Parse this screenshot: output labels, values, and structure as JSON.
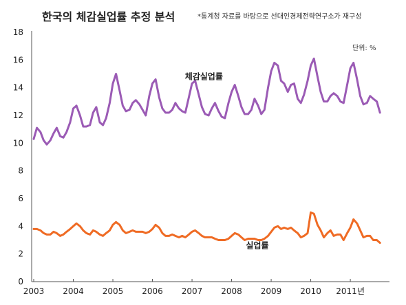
{
  "chart_data": {
    "type": "line",
    "title": "한국의 체감실업률 추정 분석",
    "source": "*통계청 자료를 바탕으로 선대인경제전략연구소가 재구성",
    "unit": "단위: %",
    "ylim": [
      0,
      18
    ],
    "yticks": [
      "0",
      "2",
      "4",
      "6",
      "8",
      "10",
      "12",
      "14",
      "16",
      "18"
    ],
    "xlim": [
      2003.0,
      2011.92
    ],
    "xticks": [
      {
        "label": "2003",
        "at": 2003
      },
      {
        "label": "2004",
        "at": 2004
      },
      {
        "label": "2005",
        "at": 2005
      },
      {
        "label": "2006",
        "at": 2006
      },
      {
        "label": "2007",
        "at": 2007
      },
      {
        "label": "2008",
        "at": 2008
      },
      {
        "label": "2009",
        "at": 2009
      },
      {
        "label": "2010",
        "at": 2010
      },
      {
        "label": "2011년",
        "at": 2011
      }
    ],
    "grid": false,
    "legend": "inline labels",
    "colors": {
      "perceived": "#9b5bb5",
      "unemployment": "#ef6b24"
    },
    "series": [
      {
        "name": "체감실업률",
        "key": "perceived",
        "points": [
          [
            2003.0,
            10.3
          ],
          [
            2003.08,
            11.1
          ],
          [
            2003.17,
            10.8
          ],
          [
            2003.25,
            10.2
          ],
          [
            2003.33,
            9.9
          ],
          [
            2003.42,
            10.2
          ],
          [
            2003.5,
            10.7
          ],
          [
            2003.58,
            11.1
          ],
          [
            2003.67,
            10.5
          ],
          [
            2003.75,
            10.4
          ],
          [
            2003.83,
            10.8
          ],
          [
            2003.92,
            11.5
          ],
          [
            2004.0,
            12.5
          ],
          [
            2004.08,
            12.7
          ],
          [
            2004.17,
            12.0
          ],
          [
            2004.25,
            11.2
          ],
          [
            2004.33,
            11.2
          ],
          [
            2004.42,
            11.3
          ],
          [
            2004.5,
            12.2
          ],
          [
            2004.58,
            12.6
          ],
          [
            2004.67,
            11.5
          ],
          [
            2004.75,
            11.3
          ],
          [
            2004.83,
            11.8
          ],
          [
            2004.92,
            12.9
          ],
          [
            2005.0,
            14.3
          ],
          [
            2005.08,
            15.0
          ],
          [
            2005.17,
            13.8
          ],
          [
            2005.25,
            12.7
          ],
          [
            2005.33,
            12.3
          ],
          [
            2005.42,
            12.4
          ],
          [
            2005.5,
            12.9
          ],
          [
            2005.58,
            13.1
          ],
          [
            2005.67,
            12.8
          ],
          [
            2005.75,
            12.4
          ],
          [
            2005.83,
            12.0
          ],
          [
            2005.92,
            13.4
          ],
          [
            2006.0,
            14.3
          ],
          [
            2006.08,
            14.6
          ],
          [
            2006.17,
            13.3
          ],
          [
            2006.25,
            12.5
          ],
          [
            2006.33,
            12.2
          ],
          [
            2006.42,
            12.2
          ],
          [
            2006.5,
            12.4
          ],
          [
            2006.58,
            12.9
          ],
          [
            2006.67,
            12.5
          ],
          [
            2006.75,
            12.3
          ],
          [
            2006.83,
            12.2
          ],
          [
            2006.92,
            13.3
          ],
          [
            2007.0,
            14.3
          ],
          [
            2007.08,
            14.5
          ],
          [
            2007.17,
            13.5
          ],
          [
            2007.25,
            12.6
          ],
          [
            2007.33,
            12.1
          ],
          [
            2007.42,
            12.0
          ],
          [
            2007.5,
            12.5
          ],
          [
            2007.58,
            12.9
          ],
          [
            2007.67,
            12.3
          ],
          [
            2007.75,
            11.9
          ],
          [
            2007.83,
            11.8
          ],
          [
            2007.92,
            12.9
          ],
          [
            2008.0,
            13.7
          ],
          [
            2008.08,
            14.2
          ],
          [
            2008.17,
            13.4
          ],
          [
            2008.25,
            12.6
          ],
          [
            2008.33,
            12.1
          ],
          [
            2008.42,
            12.1
          ],
          [
            2008.5,
            12.4
          ],
          [
            2008.58,
            13.2
          ],
          [
            2008.67,
            12.7
          ],
          [
            2008.75,
            12.1
          ],
          [
            2008.83,
            12.4
          ],
          [
            2008.92,
            14.0
          ],
          [
            2009.0,
            15.2
          ],
          [
            2009.08,
            15.8
          ],
          [
            2009.17,
            15.6
          ],
          [
            2009.25,
            14.5
          ],
          [
            2009.33,
            14.3
          ],
          [
            2009.42,
            13.7
          ],
          [
            2009.5,
            14.2
          ],
          [
            2009.58,
            14.3
          ],
          [
            2009.67,
            13.2
          ],
          [
            2009.75,
            12.9
          ],
          [
            2009.83,
            13.5
          ],
          [
            2009.92,
            14.5
          ],
          [
            2010.0,
            15.6
          ],
          [
            2010.08,
            16.1
          ],
          [
            2010.17,
            14.8
          ],
          [
            2010.25,
            13.7
          ],
          [
            2010.33,
            13.0
          ],
          [
            2010.42,
            13.0
          ],
          [
            2010.5,
            13.4
          ],
          [
            2010.58,
            13.6
          ],
          [
            2010.67,
            13.4
          ],
          [
            2010.75,
            13.0
          ],
          [
            2010.83,
            12.9
          ],
          [
            2010.92,
            14.2
          ],
          [
            2011.0,
            15.4
          ],
          [
            2011.08,
            15.8
          ],
          [
            2011.17,
            14.6
          ],
          [
            2011.25,
            13.4
          ],
          [
            2011.33,
            12.8
          ],
          [
            2011.42,
            12.9
          ],
          [
            2011.5,
            13.4
          ],
          [
            2011.58,
            13.2
          ],
          [
            2011.67,
            13.0
          ],
          [
            2011.75,
            12.2
          ]
        ]
      },
      {
        "name": "실업률",
        "key": "unemployment",
        "points": [
          [
            2003.0,
            3.8
          ],
          [
            2003.08,
            3.8
          ],
          [
            2003.17,
            3.7
          ],
          [
            2003.25,
            3.5
          ],
          [
            2003.33,
            3.4
          ],
          [
            2003.42,
            3.4
          ],
          [
            2003.5,
            3.6
          ],
          [
            2003.58,
            3.5
          ],
          [
            2003.67,
            3.3
          ],
          [
            2003.75,
            3.4
          ],
          [
            2003.83,
            3.6
          ],
          [
            2003.92,
            3.8
          ],
          [
            2004.0,
            4.0
          ],
          [
            2004.08,
            4.2
          ],
          [
            2004.17,
            4.0
          ],
          [
            2004.25,
            3.7
          ],
          [
            2004.33,
            3.5
          ],
          [
            2004.42,
            3.4
          ],
          [
            2004.5,
            3.7
          ],
          [
            2004.58,
            3.6
          ],
          [
            2004.67,
            3.4
          ],
          [
            2004.75,
            3.3
          ],
          [
            2004.83,
            3.5
          ],
          [
            2004.92,
            3.7
          ],
          [
            2005.0,
            4.1
          ],
          [
            2005.08,
            4.3
          ],
          [
            2005.17,
            4.1
          ],
          [
            2005.25,
            3.7
          ],
          [
            2005.33,
            3.5
          ],
          [
            2005.42,
            3.6
          ],
          [
            2005.5,
            3.7
          ],
          [
            2005.58,
            3.6
          ],
          [
            2005.67,
            3.6
          ],
          [
            2005.75,
            3.6
          ],
          [
            2005.83,
            3.5
          ],
          [
            2005.92,
            3.6
          ],
          [
            2006.0,
            3.8
          ],
          [
            2006.08,
            4.1
          ],
          [
            2006.17,
            3.9
          ],
          [
            2006.25,
            3.5
          ],
          [
            2006.33,
            3.3
          ],
          [
            2006.42,
            3.3
          ],
          [
            2006.5,
            3.4
          ],
          [
            2006.58,
            3.3
          ],
          [
            2006.67,
            3.2
          ],
          [
            2006.75,
            3.3
          ],
          [
            2006.83,
            3.2
          ],
          [
            2006.92,
            3.4
          ],
          [
            2007.0,
            3.6
          ],
          [
            2007.08,
            3.7
          ],
          [
            2007.17,
            3.5
          ],
          [
            2007.25,
            3.3
          ],
          [
            2007.33,
            3.2
          ],
          [
            2007.42,
            3.2
          ],
          [
            2007.5,
            3.2
          ],
          [
            2007.58,
            3.1
          ],
          [
            2007.67,
            3.0
          ],
          [
            2007.75,
            3.0
          ],
          [
            2007.83,
            3.0
          ],
          [
            2007.92,
            3.1
          ],
          [
            2008.0,
            3.3
          ],
          [
            2008.08,
            3.5
          ],
          [
            2008.17,
            3.4
          ],
          [
            2008.25,
            3.2
          ],
          [
            2008.33,
            3.0
          ],
          [
            2008.42,
            3.1
          ],
          [
            2008.5,
            3.1
          ],
          [
            2008.58,
            3.1
          ],
          [
            2008.67,
            3.0
          ],
          [
            2008.75,
            3.0
          ],
          [
            2008.83,
            3.1
          ],
          [
            2008.92,
            3.3
          ],
          [
            2009.0,
            3.6
          ],
          [
            2009.08,
            3.9
          ],
          [
            2009.17,
            4.0
          ],
          [
            2009.25,
            3.8
          ],
          [
            2009.33,
            3.9
          ],
          [
            2009.42,
            3.8
          ],
          [
            2009.5,
            3.9
          ],
          [
            2009.58,
            3.7
          ],
          [
            2009.67,
            3.5
          ],
          [
            2009.75,
            3.2
          ],
          [
            2009.83,
            3.3
          ],
          [
            2009.92,
            3.5
          ],
          [
            2010.0,
            5.0
          ],
          [
            2010.08,
            4.9
          ],
          [
            2010.17,
            4.1
          ],
          [
            2010.25,
            3.7
          ],
          [
            2010.33,
            3.2
          ],
          [
            2010.42,
            3.5
          ],
          [
            2010.5,
            3.7
          ],
          [
            2010.58,
            3.3
          ],
          [
            2010.67,
            3.4
          ],
          [
            2010.75,
            3.4
          ],
          [
            2010.83,
            3.0
          ],
          [
            2010.92,
            3.5
          ],
          [
            2011.0,
            3.9
          ],
          [
            2011.08,
            4.5
          ],
          [
            2011.17,
            4.2
          ],
          [
            2011.25,
            3.7
          ],
          [
            2011.33,
            3.2
          ],
          [
            2011.42,
            3.3
          ],
          [
            2011.5,
            3.3
          ],
          [
            2011.58,
            3.0
          ],
          [
            2011.67,
            3.0
          ],
          [
            2011.75,
            2.8
          ]
        ]
      }
    ],
    "annotations": [
      {
        "series": "perceived",
        "text": "체감실업률",
        "x": 2007.3,
        "y": 14.6
      },
      {
        "series": "unemployment",
        "text": "실업률",
        "x": 2008.65,
        "y": 2.4
      }
    ]
  }
}
